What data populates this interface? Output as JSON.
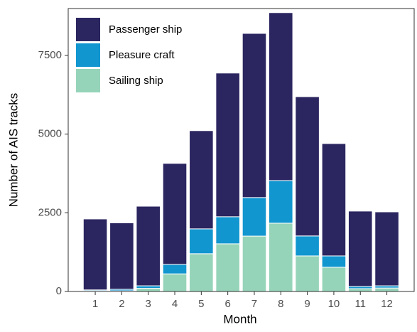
{
  "chart_data": {
    "type": "stacked_bar",
    "x_label": "Month",
    "y_label": "Number of AIS tracks",
    "categories": [
      "1",
      "2",
      "3",
      "4",
      "5",
      "6",
      "7",
      "8",
      "9",
      "10",
      "11",
      "12"
    ],
    "series": [
      {
        "name": "Passenger ship",
        "color": "#2b2660",
        "values": [
          2255,
          2110,
          2530,
          3210,
          3120,
          4565,
          5215,
          5335,
          4425,
          3570,
          2395,
          2350
        ]
      },
      {
        "name": "Pleasure craft",
        "color": "#1196cf",
        "values": [
          30,
          50,
          80,
          300,
          790,
          860,
          1225,
          1355,
          635,
          360,
          70,
          70
        ]
      },
      {
        "name": "Sailing ship",
        "color": "#96d4b9",
        "values": [
          20,
          20,
          100,
          560,
          1200,
          1515,
          1760,
          2170,
          1130,
          770,
          90,
          110
        ]
      }
    ],
    "ylim": [
      0,
      8990
    ],
    "yticks": [
      0,
      2500,
      5000,
      7500
    ],
    "legend": "top-left"
  }
}
